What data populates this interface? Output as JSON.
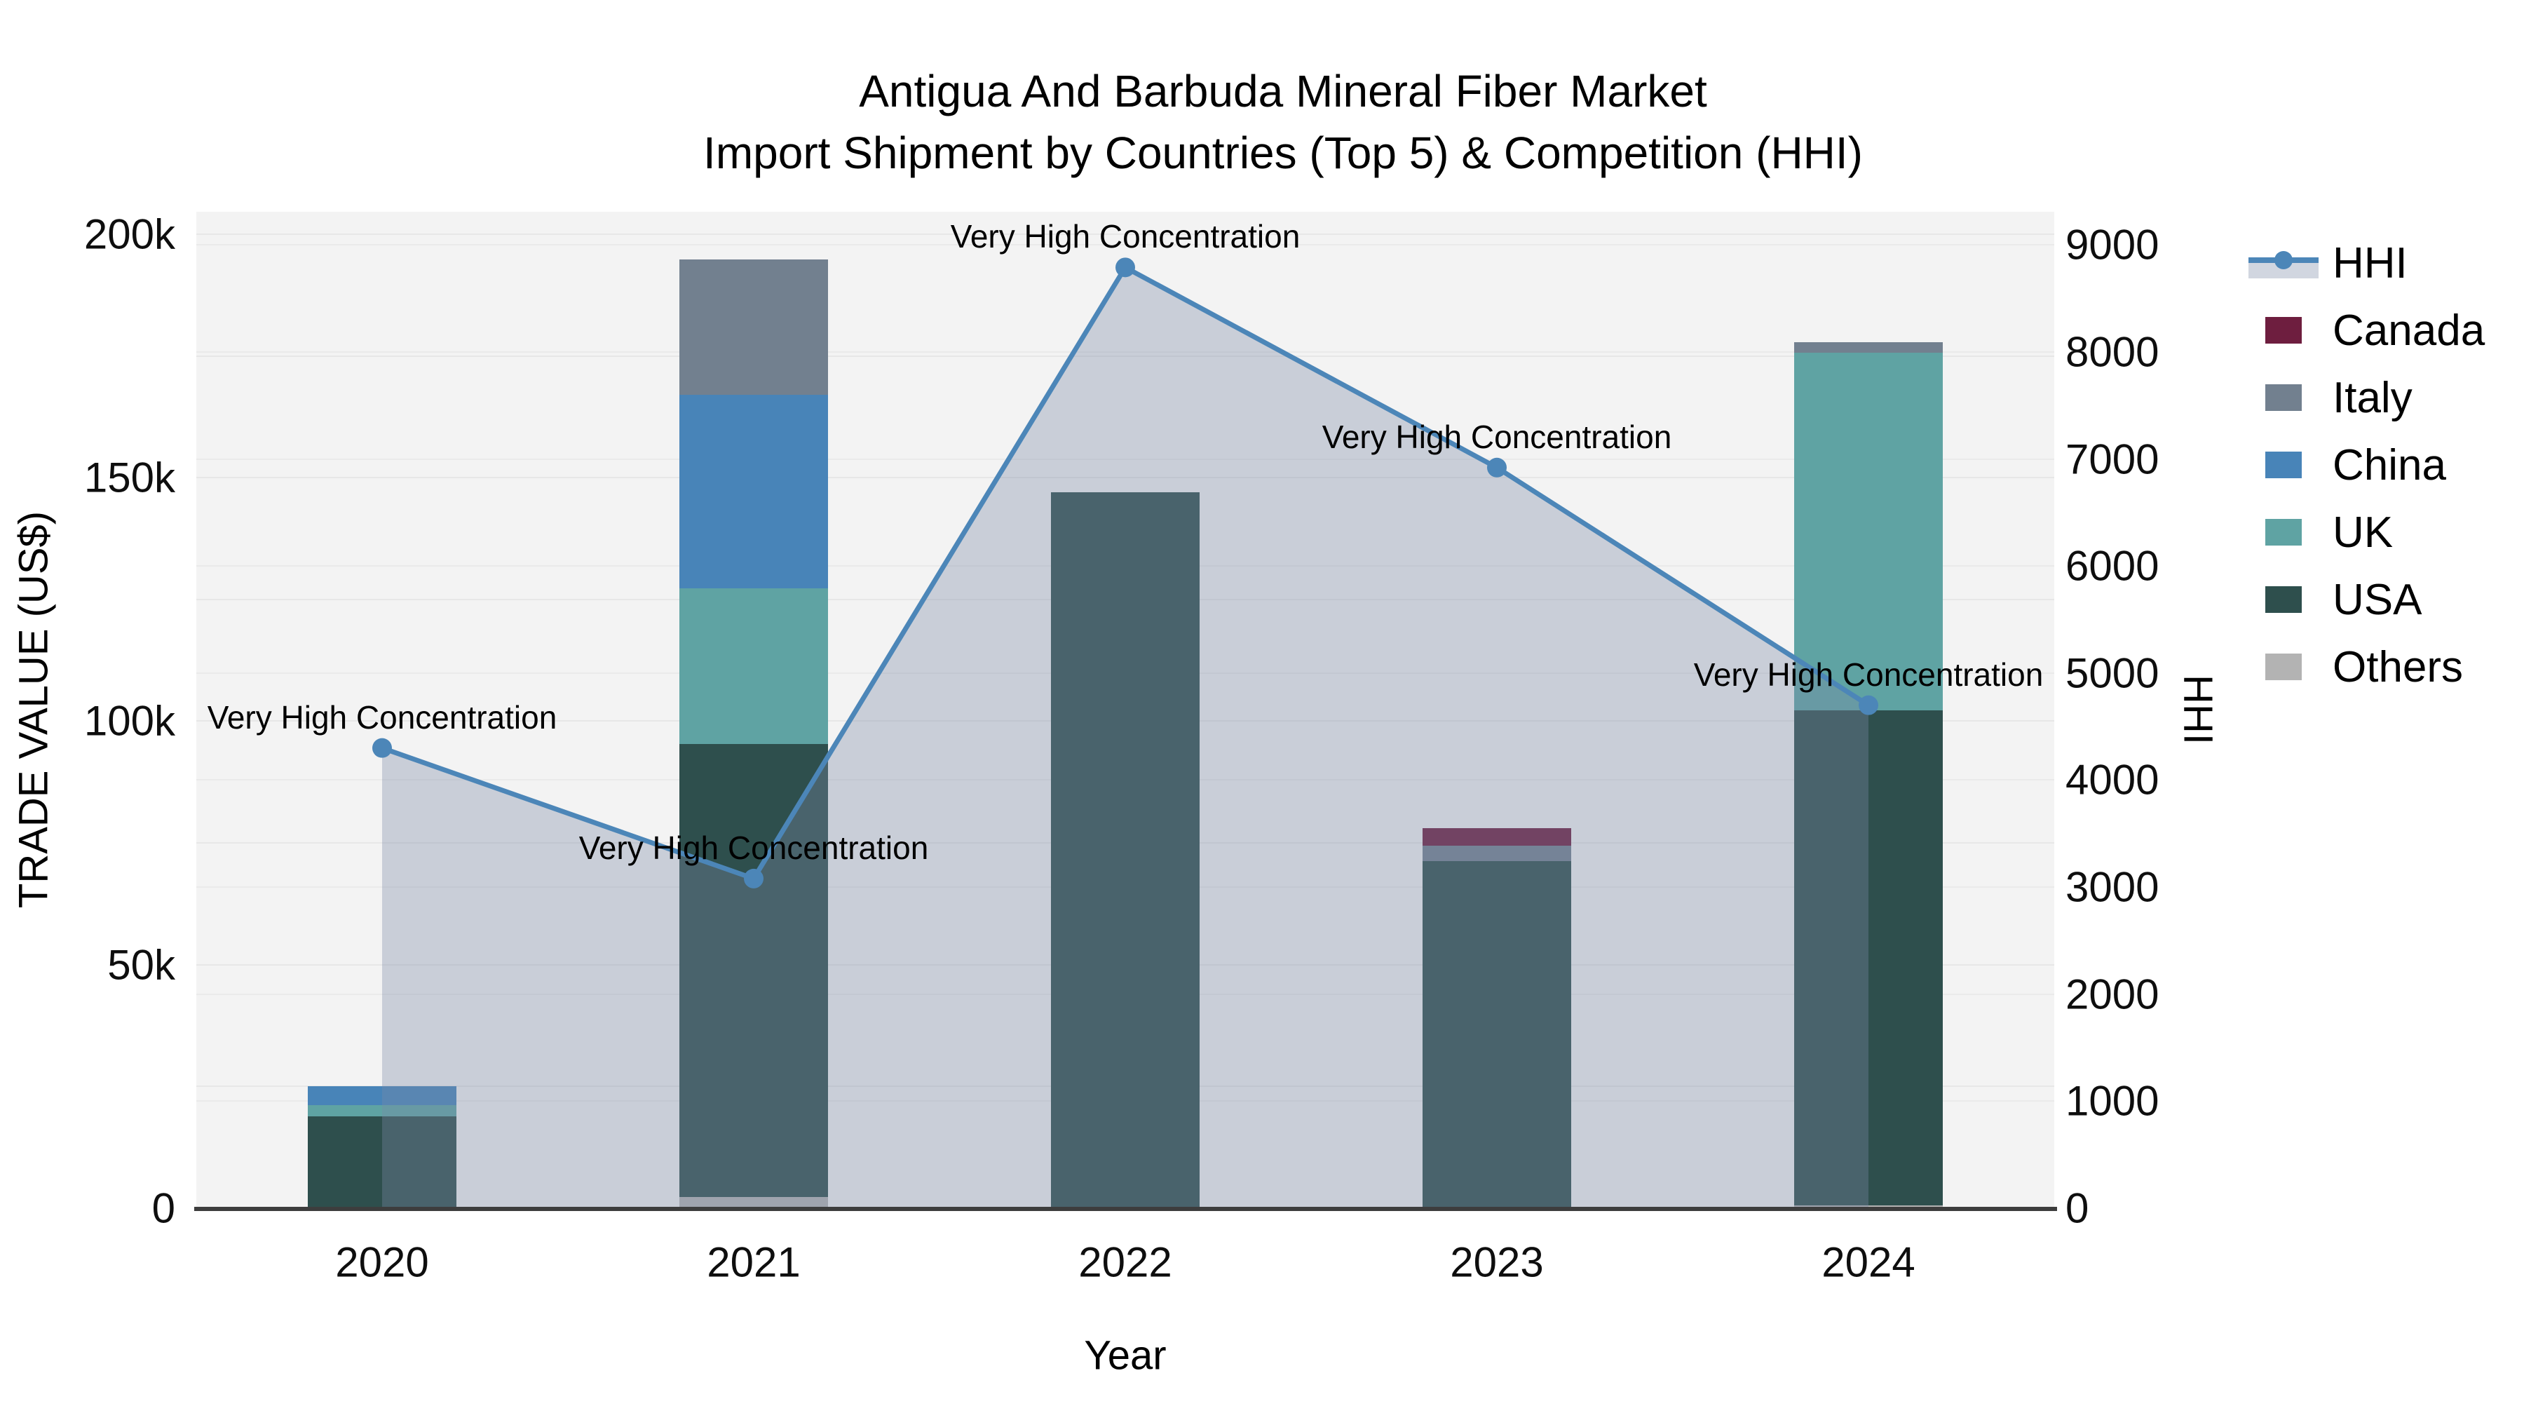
{
  "title": {
    "line1": "Antigua And Barbuda Mineral Fiber Market",
    "line2": "Import Shipment by Countries (Top 5) & Competition (HHI)"
  },
  "axes": {
    "x_title": "Year",
    "y_left_title": "TRADE VALUE (US$)",
    "y_right_title": "HHI"
  },
  "colors": {
    "plot_bg": "#f3f3f3",
    "grid": "#e7e7e7",
    "axis_line": "#3d3d3d",
    "hhi_line": "#4c86b8",
    "hhi_area": "rgba(124,138,166,0.35)"
  },
  "legend": {
    "order": [
      "HHI",
      "Canada",
      "Italy",
      "China",
      "UK",
      "USA",
      "Others"
    ]
  },
  "chart_data": {
    "type": "bar+line",
    "title": "Antigua And Barbuda Mineral Fiber Market — Import Shipment by Countries (Top 5) & Competition (HHI)",
    "x": [
      "2020",
      "2021",
      "2022",
      "2023",
      "2024"
    ],
    "xlabel": "Year",
    "ylabel_left": "TRADE VALUE (US$)",
    "ylabel_right": "HHI",
    "ylim_left": [
      0,
      204600
    ],
    "ylim_right": [
      0,
      9310
    ],
    "y_left_ticks": [
      {
        "v": 0,
        "label": "0"
      },
      {
        "v": 50000,
        "label": "50k"
      },
      {
        "v": 100000,
        "label": "100k"
      },
      {
        "v": 150000,
        "label": "150k"
      },
      {
        "v": 200000,
        "label": "200k"
      }
    ],
    "y_right_ticks": [
      {
        "v": 0,
        "label": "0"
      },
      {
        "v": 1000,
        "label": "1000"
      },
      {
        "v": 2000,
        "label": "2000"
      },
      {
        "v": 3000,
        "label": "3000"
      },
      {
        "v": 4000,
        "label": "4000"
      },
      {
        "v": 5000,
        "label": "5000"
      },
      {
        "v": 6000,
        "label": "6000"
      },
      {
        "v": 7000,
        "label": "7000"
      },
      {
        "v": 8000,
        "label": "8000"
      },
      {
        "v": 9000,
        "label": "9000"
      }
    ],
    "grid_left_step": 25000,
    "grid_right_step": 1000,
    "bar_width_frac": 0.08,
    "series": [
      {
        "name": "Canada",
        "color": "#6e1e3f",
        "values": [
          0,
          0,
          0,
          3600,
          0
        ]
      },
      {
        "name": "Italy",
        "color": "#72808f",
        "values": [
          0,
          27800,
          0,
          3100,
          2200
        ]
      },
      {
        "name": "China",
        "color": "#4884b8",
        "values": [
          4000,
          39700,
          0,
          0,
          0
        ]
      },
      {
        "name": "UK",
        "color": "#5fa3a3",
        "values": [
          2200,
          32000,
          0,
          0,
          73400
        ]
      },
      {
        "name": "USA",
        "color": "#2e4f4d",
        "values": [
          18900,
          93000,
          147000,
          71300,
          101600
        ]
      },
      {
        "name": "Others",
        "color": "#b3b3b3",
        "values": [
          0,
          2300,
          0,
          0,
          600
        ]
      }
    ],
    "stack_bottom_to_top": [
      "Others",
      "USA",
      "UK",
      "China",
      "Italy",
      "Canada"
    ],
    "hhi_line": {
      "name": "HHI",
      "color": "#4c86b8",
      "area_fill": "rgba(124,138,166,0.35)",
      "values": [
        4300,
        3080,
        8790,
        6920,
        4700
      ]
    },
    "annotations": [
      {
        "x": "2020",
        "text": "Very High Concentration"
      },
      {
        "x": "2021",
        "text": "Very High Concentration"
      },
      {
        "x": "2022",
        "text": "Very High Concentration"
      },
      {
        "x": "2023",
        "text": "Very High Concentration"
      },
      {
        "x": "2024",
        "text": "Very High Concentration"
      }
    ]
  }
}
